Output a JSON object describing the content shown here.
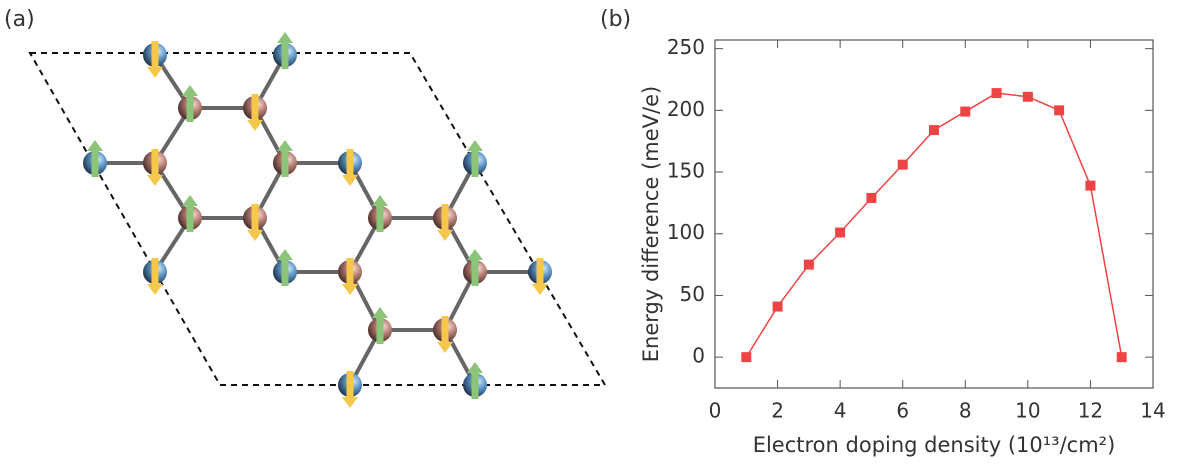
{
  "panel_labels": [
    "(a)",
    "(b)"
  ],
  "chart_data": {
    "type": "line",
    "xlabel": "Electron doping density (10¹³/cm²)",
    "ylabel": "Energy difference (meV/e)",
    "x": [
      1,
      2,
      3,
      4,
      5,
      6,
      7,
      8,
      9,
      10,
      11,
      12,
      13
    ],
    "values": [
      0,
      41,
      75,
      101,
      129,
      156,
      184,
      199,
      214,
      211,
      200,
      139,
      0
    ],
    "color": "#ef4444",
    "xlim": [
      0,
      14
    ],
    "xticks": [
      0,
      2,
      4,
      6,
      8,
      10,
      12,
      14
    ],
    "ylim": [
      -25,
      257
    ],
    "yticks": [
      0,
      50,
      100,
      150,
      200,
      250
    ]
  }
}
